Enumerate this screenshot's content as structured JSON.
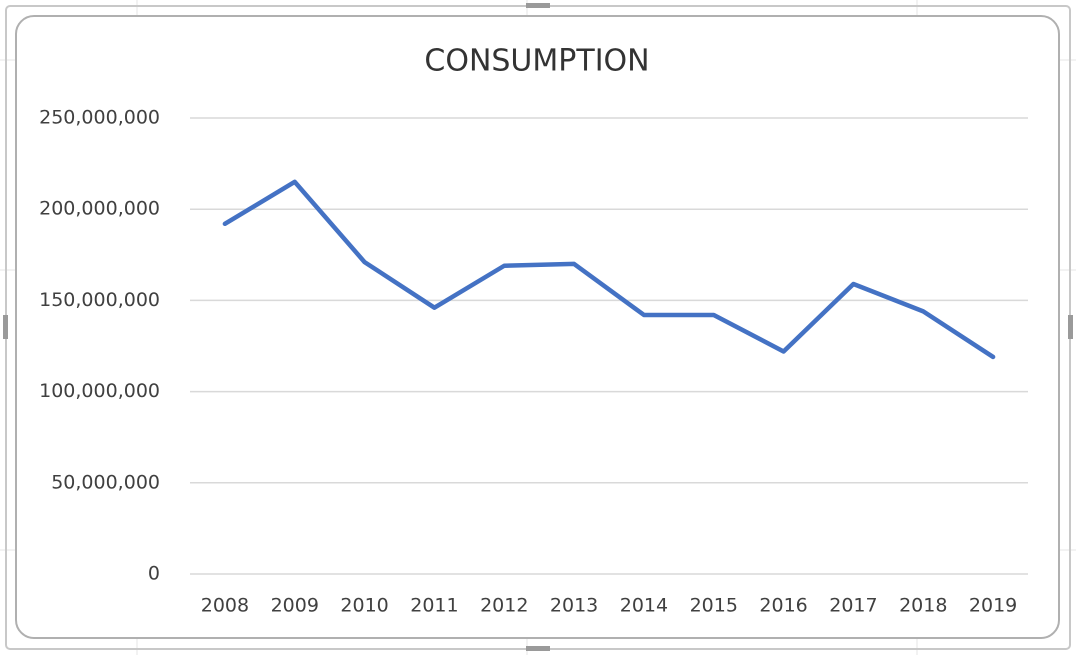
{
  "chart_data": {
    "type": "line",
    "title": "CONSUMPTION",
    "categories": [
      "2008",
      "2009",
      "2010",
      "2011",
      "2012",
      "2013",
      "2014",
      "2015",
      "2016",
      "2017",
      "2018",
      "2019"
    ],
    "series": [
      {
        "name": "CONSUMPTION",
        "color": "#4472c4",
        "values": [
          192000000,
          215000000,
          171000000,
          146000000,
          169000000,
          170000000,
          142000000,
          142000000,
          122000000,
          159000000,
          144000000,
          119000000
        ]
      }
    ],
    "ylim": [
      0,
      250000000
    ],
    "yticks": [
      0,
      {
        "value": 50000000,
        "label": "50,000,000"
      },
      {
        "value": 100000000,
        "label": "100,000,000"
      },
      {
        "value": 150000000,
        "label": "150,000,000"
      },
      {
        "value": 200000000,
        "label": "200,000,000"
      },
      {
        "value": 250000000,
        "label": "250,000,000"
      }
    ],
    "grid": true
  }
}
